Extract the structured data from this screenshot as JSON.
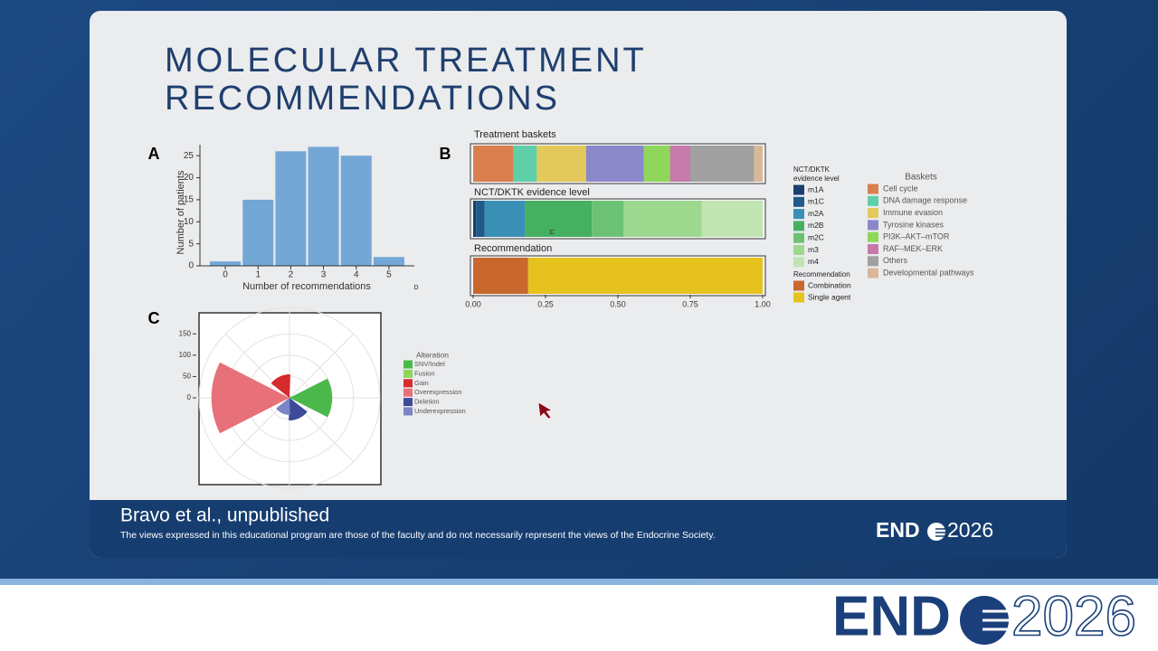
{
  "slide": {
    "title": "MOLECULAR TREATMENT RECOMMENDATIONS",
    "panel_labels": [
      "A",
      "B",
      "C"
    ]
  },
  "chart_data": [
    {
      "type": "bar",
      "categories": [
        "0",
        "1",
        "2",
        "3",
        "4",
        "5"
      ],
      "values": [
        1,
        15,
        26,
        27,
        25,
        2
      ],
      "color": "#72a7d6",
      "x_label": "Number of recommendations",
      "y_label": "Number of patients",
      "ylim": [
        0,
        27.5
      ],
      "yticks": [
        0,
        5,
        10,
        15,
        20,
        25
      ],
      "annotation": "D"
    },
    {
      "type": "stacked-barh",
      "xlim": [
        0,
        1
      ],
      "xticks": [
        {
          "value": 0,
          "label": "0.00"
        },
        {
          "value": 0.25,
          "label": "0.25"
        },
        {
          "value": 0.5,
          "label": "0.50"
        },
        {
          "value": 0.75,
          "label": "0.75"
        },
        {
          "value": 1,
          "label": "1.00"
        }
      ],
      "annotation": "C",
      "panels": [
        {
          "title": "Treatment baskets",
          "legend_title": "Baskets",
          "series": [
            {
              "name": "Cell cycle",
              "color": "#d9804e",
              "values": [
                0.14
              ]
            },
            {
              "name": "DNA damage response",
              "color": "#5ecfa8",
              "values": [
                0.08
              ]
            },
            {
              "name": "Immune evasion",
              "color": "#e3c95c",
              "values": [
                0.17
              ]
            },
            {
              "name": "Tyrosine kinases",
              "color": "#8a88c8",
              "values": [
                0.2
              ]
            },
            {
              "name": "PI3K–AKT–mTOR",
              "color": "#8fd65a",
              "values": [
                0.09
              ]
            },
            {
              "name": "RAF–MEK–ERK",
              "color": "#c57aaa",
              "values": [
                0.07
              ]
            },
            {
              "name": "Others",
              "color": "#a0a0a0",
              "values": [
                0.22
              ]
            },
            {
              "name": "Developmental pathways",
              "color": "#d9b898",
              "values": [
                0.03
              ]
            }
          ]
        },
        {
          "title": "NCT/DKTK evidence level",
          "legend_title": "NCT/DKTK evidence level",
          "series": [
            {
              "name": "m1A",
              "color": "#1a3f6e",
              "values": [
                0.01
              ]
            },
            {
              "name": "m1C",
              "color": "#1f5a8a",
              "values": [
                0.03
              ]
            },
            {
              "name": "m2A",
              "color": "#3a8fb5",
              "values": [
                0.14
              ]
            },
            {
              "name": "m2B",
              "color": "#45b060",
              "values": [
                0.23
              ]
            },
            {
              "name": "m2C",
              "color": "#6cc274",
              "values": [
                0.11
              ]
            },
            {
              "name": "m3",
              "color": "#9dd88f",
              "values": [
                0.27
              ]
            },
            {
              "name": "m4",
              "color": "#c0e5b3",
              "values": [
                0.21
              ]
            }
          ]
        },
        {
          "title": "Recommendation",
          "legend_title": "Recommendation",
          "series": [
            {
              "name": "Combination",
              "color": "#c8672e",
              "values": [
                0.19
              ]
            },
            {
              "name": "Single agent",
              "color": "#e6c21f",
              "values": [
                0.81
              ]
            }
          ]
        }
      ]
    },
    {
      "type": "polar-bar",
      "legend_title": "Alteration",
      "categories": [
        "SNV/Indel",
        "Fusion",
        "Gain",
        "Overexpression",
        "Deletion",
        "Underexpression"
      ],
      "values": [
        100,
        5,
        55,
        183,
        53,
        40
      ],
      "colors": [
        "#4bb84b",
        "#8fd65a",
        "#d62b2b",
        "#e87078",
        "#3d4a9a",
        "#7b84c4"
      ],
      "rlim": [
        0,
        212
      ],
      "rticks": [
        0,
        50,
        100,
        150
      ]
    }
  ],
  "footer": {
    "citation": "Bravo et al., unpublished",
    "disclaimer": "The views expressed in this educational program are those of the faculty and do not necessarily represent the views of the Endocrine Society.",
    "logo": {
      "left": "END",
      "right": "2026"
    }
  },
  "banner_logo": {
    "left": "END",
    "right": "2026"
  }
}
